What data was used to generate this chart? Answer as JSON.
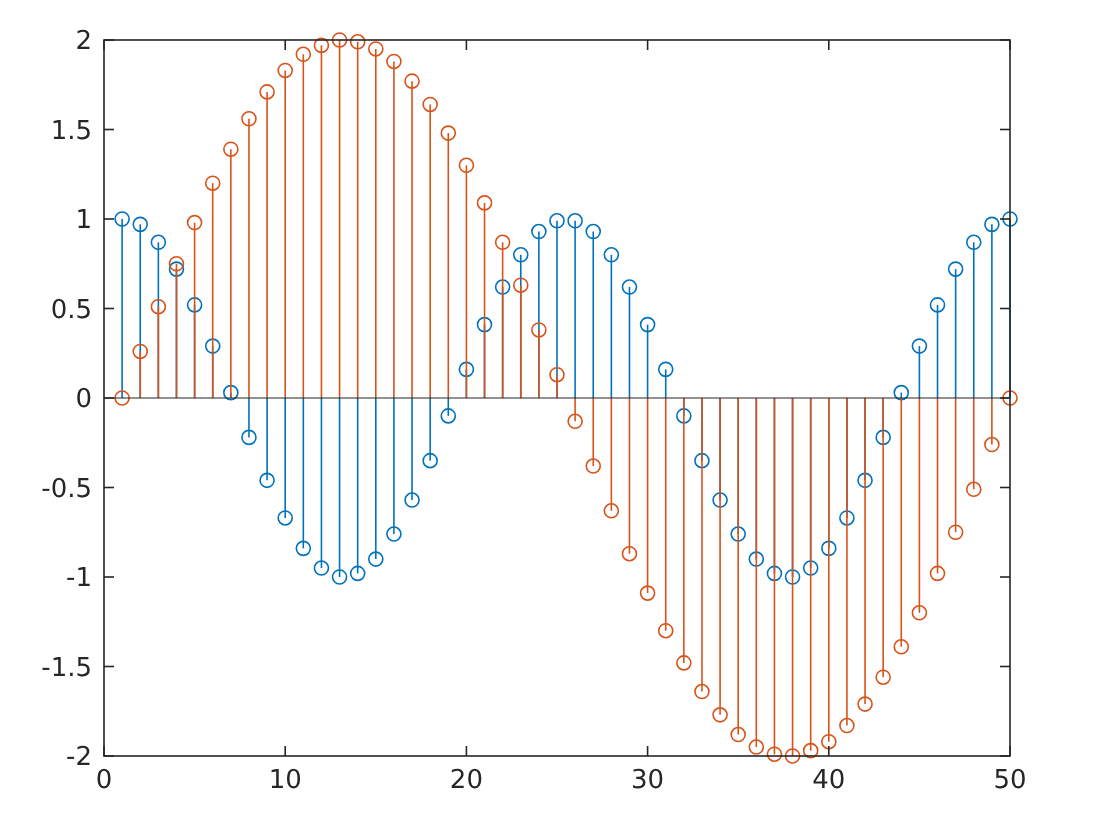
{
  "chart_data": {
    "type": "lollipop",
    "x": [
      1,
      2,
      3,
      4,
      5,
      6,
      7,
      8,
      9,
      10,
      11,
      12,
      13,
      14,
      15,
      16,
      17,
      18,
      19,
      20,
      21,
      22,
      23,
      24,
      25,
      26,
      27,
      28,
      29,
      30,
      31,
      32,
      33,
      34,
      35,
      36,
      37,
      38,
      39,
      40,
      41,
      42,
      43,
      44,
      45,
      46,
      47,
      48,
      49,
      50
    ],
    "series": [
      {
        "color": "#0072bd",
        "values": [
          1,
          0.97,
          0.87,
          0.72,
          0.52,
          0.29,
          0.03,
          -0.22,
          -0.46,
          -0.67,
          -0.84,
          -0.95,
          -1,
          -0.98,
          -0.9,
          -0.76,
          -0.57,
          -0.35,
          -0.1,
          0.16,
          0.41,
          0.62,
          0.8,
          0.93,
          0.99,
          0.99,
          0.93,
          0.8,
          0.62,
          0.41,
          0.16,
          -0.1,
          -0.35,
          -0.57,
          -0.76,
          -0.9,
          -0.98,
          -1,
          -0.95,
          -0.84,
          -0.67,
          -0.46,
          -0.22,
          0.03,
          0.29,
          0.52,
          0.72,
          0.87,
          0.97,
          1
        ]
      },
      {
        "color": "#d95319",
        "values": [
          0,
          0.26,
          0.51,
          0.75,
          0.98,
          1.2,
          1.39,
          1.56,
          1.71,
          1.83,
          1.92,
          1.97,
          2,
          1.99,
          1.95,
          1.88,
          1.77,
          1.64,
          1.48,
          1.3,
          1.09,
          0.87,
          0.63,
          0.38,
          0.13,
          -0.13,
          -0.38,
          -0.63,
          -0.87,
          -1.09,
          -1.3,
          -1.48,
          -1.64,
          -1.77,
          -1.88,
          -1.95,
          -1.99,
          -2,
          -1.97,
          -1.92,
          -1.83,
          -1.71,
          -1.56,
          -1.39,
          -1.2,
          -0.98,
          -0.75,
          -0.51,
          -0.26,
          0
        ]
      }
    ],
    "xlim": [
      0,
      50
    ],
    "xticks": [
      0,
      10,
      20,
      30,
      40,
      50
    ],
    "ylim": [
      -2,
      2
    ],
    "yticks": [
      -2,
      -1.5,
      -1,
      -0.5,
      0,
      0.5,
      1,
      1.5,
      2
    ],
    "marker": "circle"
  }
}
